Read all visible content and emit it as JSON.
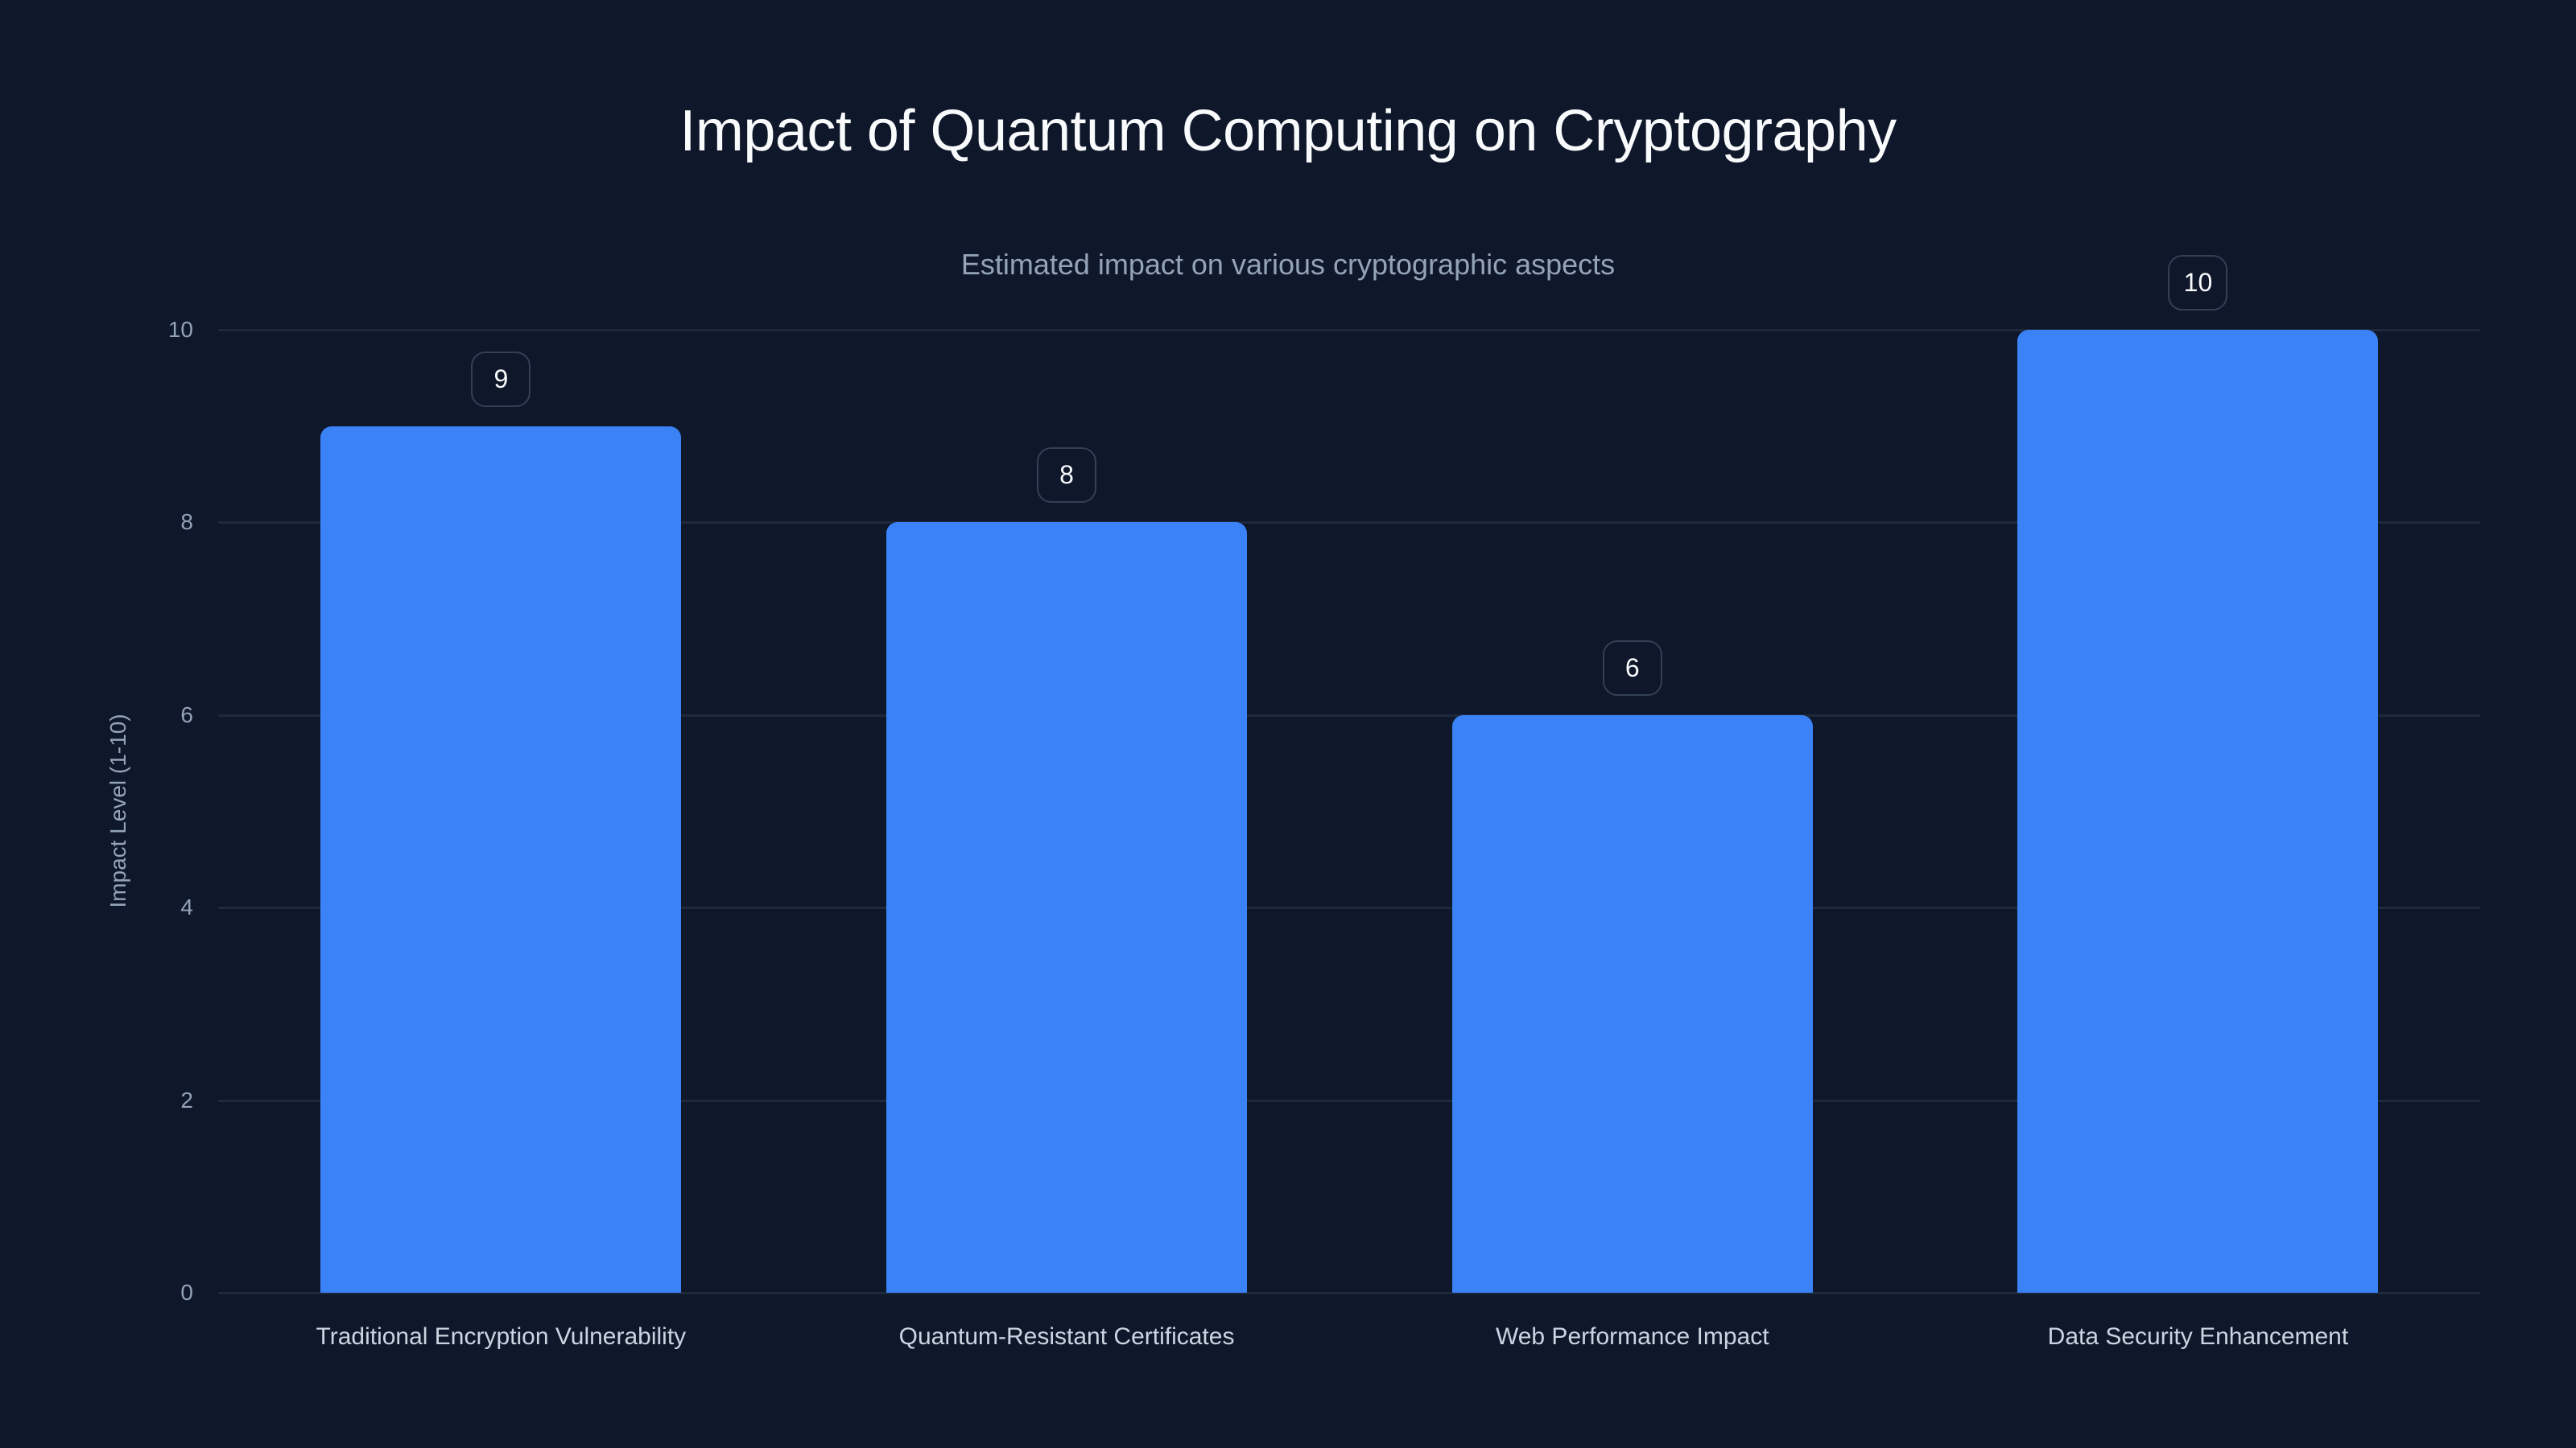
{
  "chart_data": {
    "type": "bar",
    "title": "Impact of Quantum Computing on Cryptography",
    "subtitle": "Estimated impact on various cryptographic aspects",
    "xlabel": "",
    "ylabel": "Impact Level (1-10)",
    "categories": [
      "Traditional Encryption Vulnerability",
      "Quantum-Resistant Certificates",
      "Web Performance Impact",
      "Data Security Enhancement"
    ],
    "values": [
      9,
      8,
      6,
      10
    ],
    "ylim": [
      0,
      10
    ],
    "yticks": [
      "0",
      "2",
      "4",
      "6",
      "8",
      "10"
    ],
    "grid": true,
    "legend": null,
    "data_labels": true
  },
  "colors": {
    "background": "#0f172a",
    "bar": "#3b82f6",
    "grid": "#1e293b",
    "title": "#f8fafc",
    "muted_text": "#94a3b8",
    "category_text": "#cbd5e1",
    "badge_border": "#334155"
  },
  "labels": {
    "title": "Impact of Quantum Computing on Cryptography",
    "subtitle": "Estimated impact on various cryptographic aspects",
    "ylabel": "Impact Level (1-10)",
    "yticks": [
      "0",
      "2",
      "4",
      "6",
      "8",
      "10"
    ],
    "categories": [
      "Traditional Encryption Vulnerability",
      "Quantum-Resistant Certificates",
      "Web Performance Impact",
      "Data Security Enhancement"
    ],
    "values": [
      "9",
      "8",
      "6",
      "10"
    ]
  }
}
